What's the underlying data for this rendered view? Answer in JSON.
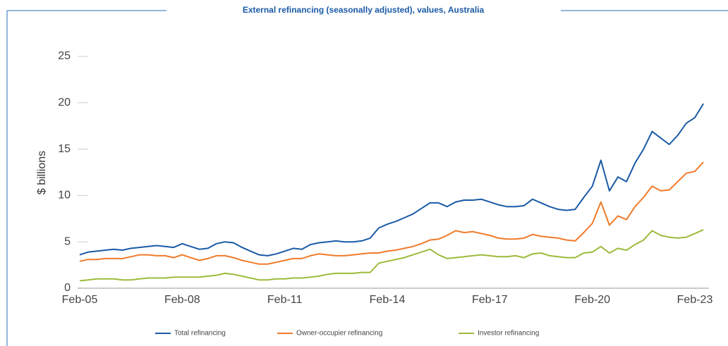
{
  "chart_data": {
    "type": "line",
    "title": "External refinancing (seasonally adjusted), values, Australia",
    "y_label": "$ billions",
    "categories": [
      "Feb-05",
      null,
      null,
      null,
      null,
      null,
      null,
      null,
      null,
      null,
      null,
      null,
      "Feb-08",
      null,
      null,
      null,
      null,
      null,
      null,
      null,
      null,
      null,
      null,
      null,
      "Feb-11",
      null,
      null,
      null,
      null,
      null,
      null,
      null,
      null,
      null,
      null,
      null,
      "Feb-14",
      null,
      null,
      null,
      null,
      null,
      null,
      null,
      null,
      null,
      null,
      null,
      "Feb-17",
      null,
      null,
      null,
      null,
      null,
      null,
      null,
      null,
      null,
      null,
      null,
      "Feb-20",
      null,
      null,
      null,
      null,
      null,
      null,
      null,
      null,
      null,
      null,
      null,
      "Feb-23",
      null
    ],
    "series": [
      {
        "name": "Total refinancing",
        "color": "#1a5aa6",
        "values": [
          3.6,
          3.9,
          4.0,
          4.1,
          4.2,
          4.1,
          4.3,
          4.4,
          4.5,
          4.6,
          4.5,
          4.4,
          4.8,
          4.5,
          4.2,
          4.3,
          4.8,
          5.0,
          4.9,
          4.4,
          4.0,
          3.6,
          3.5,
          3.7,
          4.0,
          4.3,
          4.2,
          4.7,
          4.9,
          5.0,
          5.1,
          5.0,
          5.0,
          5.1,
          5.4,
          6.5,
          6.9,
          7.2,
          7.6,
          8.0,
          8.6,
          9.2,
          9.2,
          8.8,
          9.3,
          9.5,
          9.5,
          9.6,
          9.3,
          9.0,
          8.8,
          8.8,
          8.9,
          9.6,
          9.2,
          8.8,
          8.5,
          8.4,
          8.5,
          9.8,
          11.0,
          13.8,
          10.5,
          12.0,
          11.5,
          13.5,
          15.0,
          16.9,
          16.2,
          15.5,
          16.5,
          17.8,
          18.4,
          19.9
        ]
      },
      {
        "name": "Owner-occupier refinancing",
        "color": "#f07b2a",
        "values": [
          2.9,
          3.1,
          3.1,
          3.2,
          3.2,
          3.2,
          3.4,
          3.6,
          3.6,
          3.5,
          3.5,
          3.3,
          3.6,
          3.3,
          3.0,
          3.2,
          3.5,
          3.5,
          3.3,
          3.0,
          2.8,
          2.6,
          2.6,
          2.8,
          3.0,
          3.2,
          3.2,
          3.5,
          3.7,
          3.6,
          3.5,
          3.5,
          3.6,
          3.7,
          3.8,
          3.8,
          4.0,
          4.1,
          4.3,
          4.5,
          4.8,
          5.2,
          5.3,
          5.7,
          6.2,
          6.0,
          6.1,
          5.9,
          5.7,
          5.4,
          5.3,
          5.3,
          5.4,
          5.8,
          5.6,
          5.5,
          5.4,
          5.2,
          5.1,
          6.0,
          7.0,
          9.3,
          6.8,
          7.8,
          7.4,
          8.8,
          9.8,
          11.0,
          10.5,
          10.6,
          11.5,
          12.4,
          12.6,
          13.6
        ]
      },
      {
        "name": "Investor refinancing",
        "color": "#9cbb3c",
        "values": [
          0.8,
          0.9,
          1.0,
          1.0,
          1.0,
          0.9,
          0.9,
          1.0,
          1.1,
          1.1,
          1.1,
          1.2,
          1.2,
          1.2,
          1.2,
          1.3,
          1.4,
          1.6,
          1.5,
          1.3,
          1.1,
          0.9,
          0.9,
          1.0,
          1.0,
          1.1,
          1.1,
          1.2,
          1.3,
          1.5,
          1.6,
          1.6,
          1.6,
          1.7,
          1.7,
          2.7,
          2.9,
          3.1,
          3.3,
          3.6,
          3.9,
          4.2,
          3.6,
          3.2,
          3.3,
          3.4,
          3.5,
          3.6,
          3.5,
          3.4,
          3.4,
          3.5,
          3.3,
          3.7,
          3.8,
          3.5,
          3.4,
          3.3,
          3.3,
          3.8,
          3.9,
          4.5,
          3.8,
          4.3,
          4.1,
          4.7,
          5.2,
          6.2,
          5.7,
          5.5,
          5.4,
          5.5,
          5.9,
          6.3
        ]
      }
    ],
    "ylim": [
      0,
      25
    ],
    "yticks": [
      0,
      5,
      10,
      15,
      20,
      25
    ],
    "grid": true
  }
}
